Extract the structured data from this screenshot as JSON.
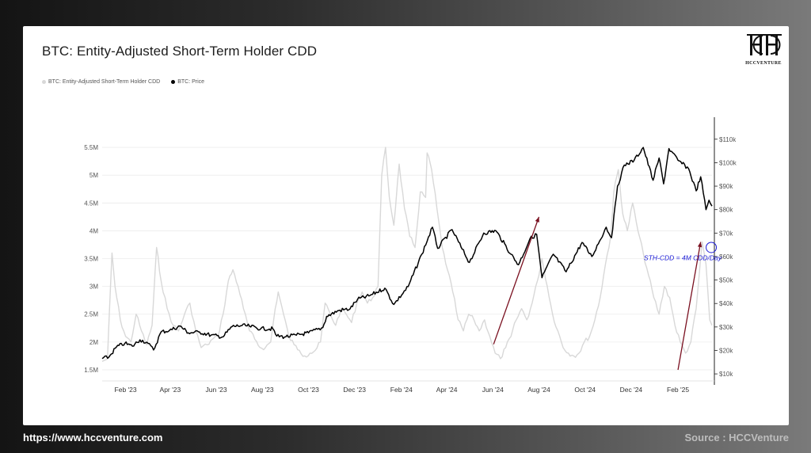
{
  "title": "BTC: Entity-Adjusted Short-Term Holder CDD",
  "legend": [
    {
      "label": "BTC: Entity-Adjusted Short-Term Holder CDD",
      "color": "#d8d8d8"
    },
    {
      "label": "BTC: Price",
      "color": "#000000"
    }
  ],
  "logo": {
    "icon": "hcc-monogram-icon",
    "text": "HCCVENTURE"
  },
  "footer": {
    "url": "https://www.hccventure.com",
    "source": "Source : HCCVenture"
  },
  "chart_data": {
    "type": "line",
    "x_range": [
      "2023-01-01",
      "2025-03-18"
    ],
    "x_ticks": [
      "Feb '23",
      "Apr '23",
      "Jun '23",
      "Aug '23",
      "Oct '23",
      "Dec '23",
      "Feb '24",
      "Apr '24",
      "Jun '24",
      "Aug '24",
      "Oct '24",
      "Dec '24",
      "Feb '25"
    ],
    "x_tick_dates": [
      "2023-02-01",
      "2023-04-01",
      "2023-06-01",
      "2023-08-01",
      "2023-10-01",
      "2023-12-01",
      "2024-02-01",
      "2024-04-01",
      "2024-06-01",
      "2024-08-01",
      "2024-10-01",
      "2024-12-01",
      "2025-02-01"
    ],
    "y_left": {
      "ticks": [
        5500000,
        5000000,
        4500000,
        4000000,
        3500000,
        3000000,
        2500000,
        2000000,
        1500000
      ],
      "tick_labels": [
        "5.5M",
        "5M",
        "4.5M",
        "4M",
        "3.5M",
        "3M",
        "2.5M",
        "2M",
        "1.5M"
      ],
      "range": [
        1300000,
        5900000
      ]
    },
    "y_right": {
      "ticks": [
        110000,
        100000,
        90000,
        80000,
        70000,
        60000,
        50000,
        40000,
        30000,
        20000,
        10000
      ],
      "tick_labels": [
        "$110k",
        "$100k",
        "$90k",
        "$80k",
        "$70k",
        "$60k",
        "$50k",
        "$40k",
        "$30k",
        "$20k",
        "$10k"
      ],
      "range": [
        7000,
        116000
      ]
    },
    "grid": "horizontal",
    "series": [
      {
        "name": "BTC: Entity-Adjusted Short-Term Holder CDD",
        "axis": "left",
        "color": "#d8d8d8",
        "points": [
          [
            "2023-01-01",
            1650000
          ],
          [
            "2023-01-08",
            1700000
          ],
          [
            "2023-01-14",
            3600000
          ],
          [
            "2023-01-18",
            3000000
          ],
          [
            "2023-01-25",
            2400000
          ],
          [
            "2023-02-01",
            2100000
          ],
          [
            "2023-02-08",
            2000000
          ],
          [
            "2023-02-15",
            2500000
          ],
          [
            "2023-02-22",
            2200000
          ],
          [
            "2023-03-01",
            1950000
          ],
          [
            "2023-03-08",
            2300000
          ],
          [
            "2023-03-14",
            3700000
          ],
          [
            "2023-03-20",
            3100000
          ],
          [
            "2023-03-28",
            2600000
          ],
          [
            "2023-04-05",
            2300000
          ],
          [
            "2023-04-12",
            2200000
          ],
          [
            "2023-04-20",
            2500000
          ],
          [
            "2023-04-27",
            2700000
          ],
          [
            "2023-05-05",
            2200000
          ],
          [
            "2023-05-12",
            1900000
          ],
          [
            "2023-05-20",
            1950000
          ],
          [
            "2023-05-27",
            2050000
          ],
          [
            "2023-06-03",
            2100000
          ],
          [
            "2023-06-10",
            2500000
          ],
          [
            "2023-06-17",
            3100000
          ],
          [
            "2023-06-23",
            3300000
          ],
          [
            "2023-06-30",
            3000000
          ],
          [
            "2023-07-07",
            2600000
          ],
          [
            "2023-07-15",
            2200000
          ],
          [
            "2023-07-22",
            2050000
          ],
          [
            "2023-07-29",
            1900000
          ],
          [
            "2023-08-05",
            1900000
          ],
          [
            "2023-08-12",
            2000000
          ],
          [
            "2023-08-18",
            2600000
          ],
          [
            "2023-08-22",
            2900000
          ],
          [
            "2023-08-29",
            2500000
          ],
          [
            "2023-09-05",
            2100000
          ],
          [
            "2023-09-12",
            1950000
          ],
          [
            "2023-09-19",
            1850000
          ],
          [
            "2023-09-26",
            1750000
          ],
          [
            "2023-10-03",
            1800000
          ],
          [
            "2023-10-10",
            1850000
          ],
          [
            "2023-10-17",
            2000000
          ],
          [
            "2023-10-23",
            2700000
          ],
          [
            "2023-10-30",
            2500000
          ],
          [
            "2023-11-06",
            2300000
          ],
          [
            "2023-11-13",
            2600000
          ],
          [
            "2023-11-20",
            2500000
          ],
          [
            "2023-11-27",
            2350000
          ],
          [
            "2023-12-04",
            2700000
          ],
          [
            "2023-12-11",
            2900000
          ],
          [
            "2023-12-18",
            2700000
          ],
          [
            "2023-12-25",
            2800000
          ],
          [
            "2024-01-01",
            3000000
          ],
          [
            "2024-01-06",
            5000000
          ],
          [
            "2024-01-11",
            5500000
          ],
          [
            "2024-01-16",
            4600000
          ],
          [
            "2024-01-22",
            4100000
          ],
          [
            "2024-01-29",
            5200000
          ],
          [
            "2024-02-05",
            4400000
          ],
          [
            "2024-02-12",
            3900000
          ],
          [
            "2024-02-19",
            3700000
          ],
          [
            "2024-02-26",
            4700000
          ],
          [
            "2024-03-04",
            4600000
          ],
          [
            "2024-03-06",
            5400000
          ],
          [
            "2024-03-12",
            5100000
          ],
          [
            "2024-03-19",
            4400000
          ],
          [
            "2024-03-26",
            3700000
          ],
          [
            "2024-04-02",
            3300000
          ],
          [
            "2024-04-09",
            2900000
          ],
          [
            "2024-04-16",
            2400000
          ],
          [
            "2024-04-23",
            2200000
          ],
          [
            "2024-04-30",
            2500000
          ],
          [
            "2024-05-07",
            2400000
          ],
          [
            "2024-05-14",
            2200000
          ],
          [
            "2024-05-21",
            2400000
          ],
          [
            "2024-05-28",
            2100000
          ],
          [
            "2024-06-04",
            1800000
          ],
          [
            "2024-06-11",
            1700000
          ],
          [
            "2024-06-18",
            1900000
          ],
          [
            "2024-06-25",
            2100000
          ],
          [
            "2024-07-02",
            2400000
          ],
          [
            "2024-07-09",
            2600000
          ],
          [
            "2024-07-16",
            2400000
          ],
          [
            "2024-07-23",
            2700000
          ],
          [
            "2024-07-30",
            3100000
          ],
          [
            "2024-08-05",
            3500000
          ],
          [
            "2024-08-12",
            3000000
          ],
          [
            "2024-08-19",
            2500000
          ],
          [
            "2024-08-26",
            2200000
          ],
          [
            "2024-09-02",
            1900000
          ],
          [
            "2024-09-09",
            1800000
          ],
          [
            "2024-09-16",
            1750000
          ],
          [
            "2024-09-23",
            1800000
          ],
          [
            "2024-09-30",
            2000000
          ],
          [
            "2024-10-07",
            2100000
          ],
          [
            "2024-10-14",
            2400000
          ],
          [
            "2024-10-21",
            2800000
          ],
          [
            "2024-10-28",
            3400000
          ],
          [
            "2024-11-04",
            3900000
          ],
          [
            "2024-11-08",
            4700000
          ],
          [
            "2024-11-14",
            5100000
          ],
          [
            "2024-11-20",
            4300000
          ],
          [
            "2024-11-26",
            4000000
          ],
          [
            "2024-12-03",
            4500000
          ],
          [
            "2024-12-10",
            4000000
          ],
          [
            "2024-12-17",
            3600000
          ],
          [
            "2024-12-24",
            3200000
          ],
          [
            "2024-12-31",
            2800000
          ],
          [
            "2025-01-07",
            2500000
          ],
          [
            "2025-01-14",
            3000000
          ],
          [
            "2025-01-21",
            2800000
          ],
          [
            "2025-01-28",
            2300000
          ],
          [
            "2025-02-04",
            2000000
          ],
          [
            "2025-02-11",
            1800000
          ],
          [
            "2025-02-18",
            2000000
          ],
          [
            "2025-02-25",
            2600000
          ],
          [
            "2025-03-01",
            3200000
          ],
          [
            "2025-03-05",
            3800000
          ],
          [
            "2025-03-10",
            3400000
          ],
          [
            "2025-03-15",
            2400000
          ],
          [
            "2025-03-18",
            2300000
          ]
        ]
      },
      {
        "name": "BTC: Price",
        "axis": "right",
        "color": "#000000",
        "points": [
          [
            "2023-01-01",
            16500
          ],
          [
            "2023-01-10",
            17200
          ],
          [
            "2023-01-20",
            21500
          ],
          [
            "2023-01-31",
            23000
          ],
          [
            "2023-02-10",
            21800
          ],
          [
            "2023-02-20",
            24500
          ],
          [
            "2023-03-01",
            23500
          ],
          [
            "2023-03-10",
            20200
          ],
          [
            "2023-03-20",
            27900
          ],
          [
            "2023-03-31",
            28500
          ],
          [
            "2023-04-14",
            30400
          ],
          [
            "2023-04-25",
            27500
          ],
          [
            "2023-05-10",
            27800
          ],
          [
            "2023-05-25",
            26500
          ],
          [
            "2023-06-10",
            25800
          ],
          [
            "2023-06-22",
            30200
          ],
          [
            "2023-07-05",
            30600
          ],
          [
            "2023-07-15",
            30300
          ],
          [
            "2023-07-30",
            29300
          ],
          [
            "2023-08-15",
            29200
          ],
          [
            "2023-08-20",
            26100
          ],
          [
            "2023-09-01",
            25800
          ],
          [
            "2023-09-15",
            26500
          ],
          [
            "2023-10-01",
            27500
          ],
          [
            "2023-10-20",
            29700
          ],
          [
            "2023-10-25",
            34500
          ],
          [
            "2023-11-10",
            37000
          ],
          [
            "2023-11-25",
            37700
          ],
          [
            "2023-12-05",
            41800
          ],
          [
            "2023-12-20",
            43200
          ],
          [
            "2024-01-10",
            46500
          ],
          [
            "2024-01-22",
            39600
          ],
          [
            "2024-02-10",
            47200
          ],
          [
            "2024-02-28",
            61000
          ],
          [
            "2024-03-13",
            72500
          ],
          [
            "2024-03-20",
            63500
          ],
          [
            "2024-04-08",
            71500
          ],
          [
            "2024-04-20",
            64000
          ],
          [
            "2024-05-01",
            57500
          ],
          [
            "2024-05-20",
            70000
          ],
          [
            "2024-06-05",
            71000
          ],
          [
            "2024-06-25",
            61000
          ],
          [
            "2024-07-05",
            56500
          ],
          [
            "2024-07-20",
            67500
          ],
          [
            "2024-07-29",
            69500
          ],
          [
            "2024-08-05",
            51000
          ],
          [
            "2024-08-20",
            61000
          ],
          [
            "2024-09-06",
            53500
          ],
          [
            "2024-09-27",
            66000
          ],
          [
            "2024-10-10",
            60000
          ],
          [
            "2024-10-29",
            72500
          ],
          [
            "2024-11-05",
            68000
          ],
          [
            "2024-11-13",
            90000
          ],
          [
            "2024-11-22",
            99000
          ],
          [
            "2024-12-05",
            101000
          ],
          [
            "2024-12-17",
            106500
          ],
          [
            "2024-12-30",
            92500
          ],
          [
            "2025-01-07",
            102000
          ],
          [
            "2025-01-13",
            91000
          ],
          [
            "2025-01-20",
            106000
          ],
          [
            "2025-02-01",
            101000
          ],
          [
            "2025-02-15",
            97500
          ],
          [
            "2025-02-25",
            88000
          ],
          [
            "2025-03-03",
            94000
          ],
          [
            "2025-03-10",
            80000
          ],
          [
            "2025-03-14",
            84000
          ],
          [
            "2025-03-18",
            81500
          ]
        ]
      }
    ],
    "annotations": [
      {
        "text": "STH-CDD = 4M CDD/Day",
        "date": "2025-03-17",
        "cdd": 3700000
      }
    ],
    "arrows": [
      {
        "from": [
          "2024-06-02",
          1960000
        ],
        "to": [
          "2024-08-01",
          4250000
        ],
        "color": "#7a1020"
      },
      {
        "from": [
          "2025-02-01",
          1500000
        ],
        "to": [
          "2025-03-03",
          3800000
        ],
        "color": "#7a1020"
      }
    ]
  }
}
